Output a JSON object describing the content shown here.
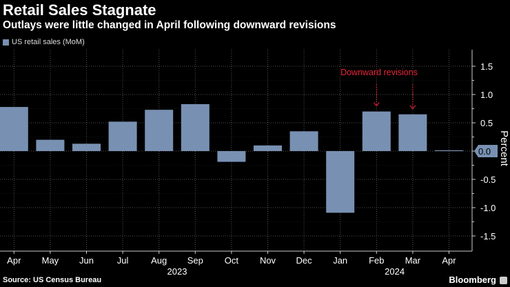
{
  "title": "Retail Sales Stagnate",
  "subtitle": "Outlays were little changed in April following downward revisions",
  "source": "Source: US Census Bureau",
  "brand": "Bloomberg",
  "chart_data": {
    "type": "bar",
    "categories": [
      "Apr",
      "May",
      "Jun",
      "Jul",
      "Aug",
      "Sep",
      "Oct",
      "Nov",
      "Dec",
      "Jan",
      "Feb",
      "Mar",
      "Apr"
    ],
    "year_labels": [
      {
        "label": "2023",
        "between": [
          "Aug",
          "Sep"
        ]
      },
      {
        "label": "2024",
        "between": [
          "Feb",
          "Mar"
        ]
      }
    ],
    "series": [
      {
        "name": "US retail sales (MoM)",
        "values": [
          0.78,
          0.2,
          0.13,
          0.52,
          0.73,
          0.83,
          -0.19,
          0.1,
          0.35,
          -1.09,
          0.7,
          0.65,
          0.01
        ],
        "color": "#7890b2"
      }
    ],
    "ylabel": "Percent",
    "ylim": [
      -1.75,
      1.8
    ],
    "yticks": [
      1.5,
      1.0,
      0.5,
      0.0,
      -0.5,
      -1.0,
      -1.5
    ],
    "ytick_labels": [
      "1.5",
      "1.0",
      "0.5",
      "0.0",
      "-0.5",
      "-1.0",
      "-1.5"
    ],
    "last_value_label": "0.0",
    "annotation": {
      "text": "Downward revisions",
      "targets": [
        "Feb",
        "Mar"
      ],
      "color": "#e8253a"
    },
    "grid": true,
    "legend": "top-left"
  }
}
